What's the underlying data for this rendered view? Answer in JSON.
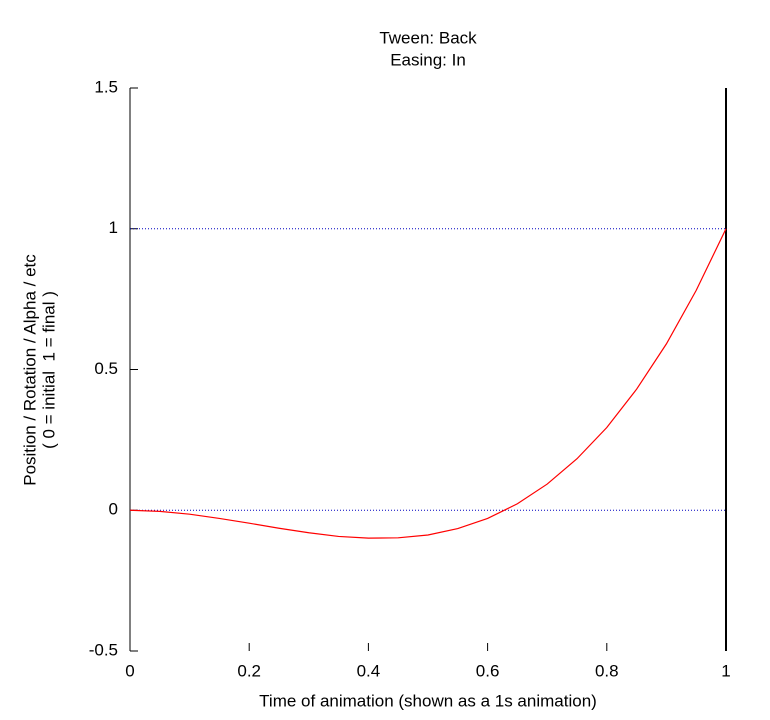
{
  "chart_data": {
    "type": "line",
    "title": "Tween: Back",
    "subtitle": "Easing: In",
    "xlabel": "Time of animation (shown as a 1s animation)",
    "ylabel": [
      "Position / Rotation / Alpha / etc",
      "( 0 = initial  1 = final )"
    ],
    "x": [
      0,
      0.05,
      0.1,
      0.15,
      0.2,
      0.25,
      0.3,
      0.35,
      0.4,
      0.45,
      0.5,
      0.55,
      0.6,
      0.65,
      0.7,
      0.75,
      0.8,
      0.85,
      0.9,
      0.95,
      1
    ],
    "series": [
      {
        "color": "#ff0000",
        "values": [
          0,
          -0.004,
          -0.014,
          -0.029,
          -0.046,
          -0.064,
          -0.08,
          -0.093,
          -0.099,
          -0.098,
          -0.088,
          -0.065,
          -0.029,
          0.023,
          0.093,
          0.183,
          0.294,
          0.43,
          0.591,
          0.781,
          1
        ]
      }
    ],
    "hlines": [
      0,
      1
    ],
    "hline_color": "#0000c0",
    "vlines": [
      1
    ],
    "vline_color": "#000000",
    "xlim": [
      0,
      1
    ],
    "ylim": [
      -0.5,
      1.5
    ],
    "xticks": [
      0,
      0.2,
      0.4,
      0.6,
      0.8,
      1
    ],
    "yticks": [
      -0.5,
      0,
      0.5,
      1,
      1.5
    ]
  }
}
